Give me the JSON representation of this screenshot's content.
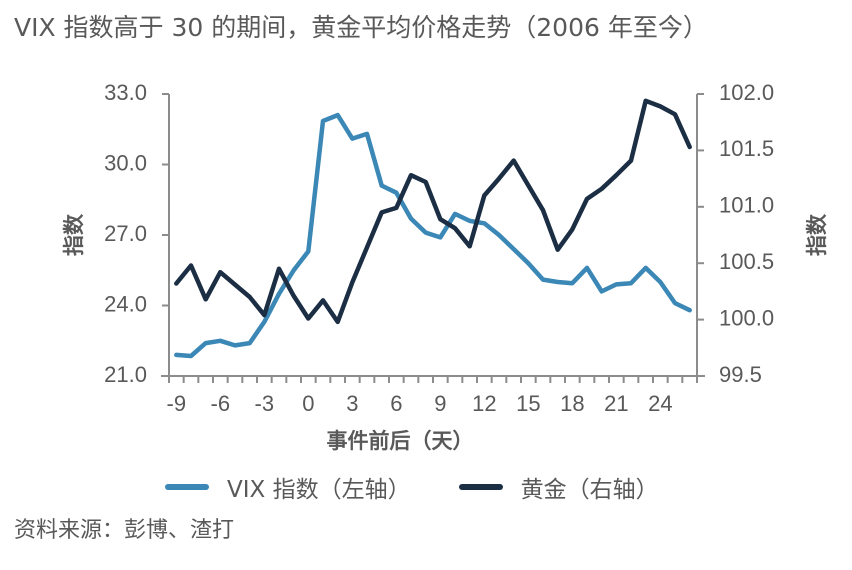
{
  "chart_data": {
    "type": "line",
    "title": "VIX 指数高于 30 的期间，黄金平均价格走势（2006 年至今）",
    "xlabel": "事件前后（天）",
    "ylabel_left": "指数",
    "ylabel_right": "指数",
    "x": [
      -9,
      -8,
      -7,
      -6,
      -5,
      -4,
      -3,
      -2,
      -1,
      0,
      1,
      2,
      3,
      4,
      5,
      6,
      7,
      8,
      9,
      10,
      11,
      12,
      13,
      14,
      15,
      16,
      17,
      18,
      19,
      20,
      21,
      22,
      23,
      24,
      25,
      26
    ],
    "x_ticks": [
      "-9",
      "-6",
      "-3",
      "0",
      "3",
      "6",
      "9",
      "12",
      "15",
      "18",
      "21",
      "24"
    ],
    "x_tick_values": [
      -9,
      -6,
      -3,
      0,
      3,
      6,
      9,
      12,
      15,
      18,
      21,
      24
    ],
    "xlim": [
      -9.5,
      26.5
    ],
    "ylim_left": [
      21.0,
      33.0
    ],
    "ylim_right": [
      99.5,
      102.0
    ],
    "y_ticks_left": [
      "33.0",
      "30.0",
      "27.0",
      "24.0",
      "21.0"
    ],
    "y_tick_values_left": [
      33,
      30,
      27,
      24,
      21
    ],
    "y_ticks_right": [
      "102.0",
      "101.5",
      "101.0",
      "100.5",
      "100.0",
      "99.5"
    ],
    "y_tick_values_right": [
      102,
      101.5,
      101,
      100.5,
      100,
      99.5
    ],
    "grid": false,
    "legend_position": "bottom",
    "series": [
      {
        "name": "VIX 指数（左轴）",
        "axis": "left",
        "color": "#3b87b6",
        "values": [
          21.9,
          21.85,
          22.4,
          22.5,
          22.3,
          22.4,
          23.3,
          24.5,
          25.5,
          26.3,
          31.85,
          32.1,
          31.1,
          31.3,
          29.1,
          28.8,
          27.7,
          27.1,
          26.9,
          27.9,
          27.6,
          27.5,
          27.0,
          26.4,
          25.8,
          25.1,
          25.0,
          24.95,
          25.6,
          24.6,
          24.9,
          24.95,
          25.6,
          25.0,
          24.1,
          23.8
        ]
      },
      {
        "name": "黄金（右轴）",
        "axis": "right",
        "color": "#1c2e44",
        "values": [
          100.32,
          100.48,
          100.18,
          100.42,
          100.31,
          100.2,
          100.04,
          100.45,
          100.21,
          100.01,
          100.17,
          99.98,
          100.33,
          100.64,
          100.95,
          100.99,
          101.28,
          101.22,
          100.89,
          100.81,
          100.65,
          101.1,
          101.25,
          101.41,
          101.19,
          100.97,
          100.62,
          100.8,
          101.07,
          101.16,
          101.28,
          101.41,
          101.94,
          101.89,
          101.82,
          101.53
        ]
      }
    ],
    "source": "资料来源：彭博、渣打"
  }
}
